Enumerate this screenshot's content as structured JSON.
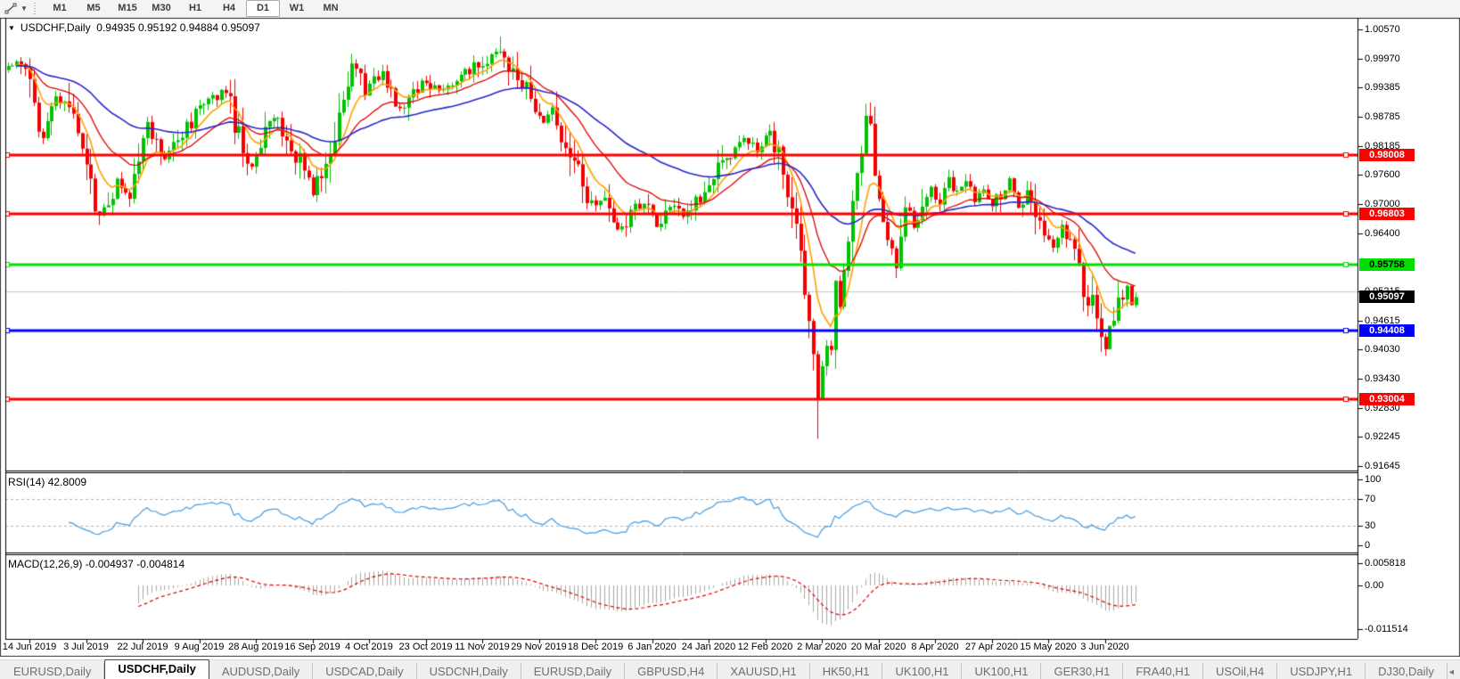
{
  "toolbar": {
    "icon": "trendline-tool-icon",
    "timeframes": [
      "M1",
      "M5",
      "M15",
      "M30",
      "H1",
      "H4",
      "D1",
      "W1",
      "MN"
    ],
    "active_timeframe": "D1"
  },
  "header": {
    "title": "USDCHF,Daily",
    "ohlc_text": "0.94935 0.95192 0.94884 0.95097"
  },
  "rsi_panel": {
    "label": "RSI(14)",
    "value": "42.8009",
    "line_color": "#459be0",
    "level_color": "#b4b4b4",
    "ticks": [
      {
        "t": "100",
        "v": 100
      },
      {
        "t": "70",
        "v": 70
      },
      {
        "t": "30",
        "v": 30
      },
      {
        "t": "0",
        "v": 0
      }
    ],
    "levels": [
      70,
      30
    ]
  },
  "macd_panel": {
    "label": "MACD(12,26,9)",
    "values_text": "-0.004937 -0.004814",
    "histogram_color": "#a8a8a8",
    "signal_color": "#e00000",
    "ticks": [
      {
        "t": "0.005818",
        "v": 0.005818
      },
      {
        "t": "0.00",
        "v": 0
      },
      {
        "t": "-0.011514",
        "v": -0.011514
      }
    ]
  },
  "tabs": {
    "items": [
      "EURUSD,Daily",
      "USDCHF,Daily",
      "AUDUSD,Daily",
      "USDCAD,Daily",
      "USDCNH,Daily",
      "EURUSD,Daily",
      "GBPUSD,H4",
      "XAUUSD,H1",
      "HK50,H1",
      "UK100,H1",
      "UK100,H1",
      "GER30,H1",
      "FRA40,H1",
      "USOil,H4",
      "USDJPY,H1",
      "DJ30,Daily"
    ],
    "active_index": 1,
    "scroll_left": "◄",
    "scroll_right": "►"
  },
  "chart_data": {
    "type": "candlestick",
    "symbol": "USDCHF",
    "timeframe": "Daily",
    "ohlc_display": {
      "open": 0.94935,
      "high": 0.95192,
      "low": 0.94884,
      "close": 0.95097
    },
    "current_price": 0.95097,
    "up_color": "#00c300",
    "down_color": "#f30000",
    "y_axis_ticks": [
      "1.00570",
      "0.99970",
      "0.99385",
      "0.98785",
      "0.98185",
      "0.97600",
      "0.97000",
      "0.96400",
      "0.95215",
      "0.94615",
      "0.94030",
      "0.93430",
      "0.92830",
      "0.92245",
      "0.91645"
    ],
    "x_axis_labels": [
      "14 Jun 2019",
      "3 Jul 2019",
      "22 Jul 2019",
      "9 Aug 2019",
      "28 Aug 2019",
      "16 Sep 2019",
      "4 Oct 2019",
      "23 Oct 2019",
      "11 Nov 2019",
      "29 Nov 2019",
      "18 Dec 2019",
      "6 Jan 2020",
      "24 Jan 2020",
      "12 Feb 2020",
      "2 Mar 2020",
      "20 Mar 2020",
      "8 Apr 2020",
      "27 Apr 2020",
      "15 May 2020",
      "3 Jun 2020"
    ],
    "price_tags": [
      {
        "text": "0.98008",
        "price": 0.98008,
        "bg": "#ff0000",
        "fg": "#ffffff"
      },
      {
        "text": "0.96803",
        "price": 0.96803,
        "bg": "#ff0000",
        "fg": "#ffffff"
      },
      {
        "text": "0.95758",
        "price": 0.95758,
        "bg": "#00e000",
        "fg": "#000000"
      },
      {
        "text": "0.95097",
        "price": 0.95097,
        "bg": "#000000",
        "fg": "#ffffff"
      },
      {
        "text": "0.94408",
        "price": 0.94408,
        "bg": "#0000ff",
        "fg": "#ffffff"
      },
      {
        "text": "0.93004",
        "price": 0.93004,
        "bg": "#ff0000",
        "fg": "#ffffff"
      }
    ],
    "horizontal_levels": [
      {
        "price": 0.98008,
        "color": "#ff0000",
        "width": 3
      },
      {
        "price": 0.96803,
        "color": "#ff0000",
        "width": 3
      },
      {
        "price": 0.95758,
        "color": "#00e000",
        "width": 3
      },
      {
        "price": 0.94408,
        "color": "#0000ff",
        "width": 3
      },
      {
        "price": 0.93004,
        "color": "#ff0000",
        "width": 3
      }
    ],
    "gridline_price": 0.95215,
    "moving_averages": [
      {
        "period": 8,
        "color": "#ffa000",
        "width": 1.6
      },
      {
        "period": 20,
        "color": "#e00000",
        "width": 1.3
      },
      {
        "period": 50,
        "color": "#2727cc",
        "width": 1.6
      }
    ],
    "bars_total": 260,
    "price_path": [
      [
        0,
        0.998
      ],
      [
        2,
        0.9997
      ],
      [
        5,
        0.996
      ],
      [
        8,
        0.9825
      ],
      [
        11,
        0.9915
      ],
      [
        14,
        0.9895
      ],
      [
        18,
        0.9775
      ],
      [
        21,
        0.9663
      ],
      [
        25,
        0.9745
      ],
      [
        28,
        0.971
      ],
      [
        32,
        0.9855
      ],
      [
        36,
        0.979
      ],
      [
        40,
        0.984
      ],
      [
        45,
        0.9905
      ],
      [
        50,
        0.9935
      ],
      [
        53,
        0.9835
      ],
      [
        56,
        0.9775
      ],
      [
        61,
        0.988
      ],
      [
        66,
        0.9805
      ],
      [
        70,
        0.9725
      ],
      [
        75,
        0.985
      ],
      [
        79,
        0.999
      ],
      [
        82,
        0.993
      ],
      [
        86,
        0.9965
      ],
      [
        90,
        0.9895
      ],
      [
        95,
        0.995
      ],
      [
        99,
        0.993
      ],
      [
        103,
        0.995
      ],
      [
        108,
        0.9985
      ],
      [
        113,
        1.002
      ],
      [
        117,
        0.996
      ],
      [
        120,
        0.9915
      ],
      [
        123,
        0.9865
      ],
      [
        125,
        0.989
      ],
      [
        128,
        0.982
      ],
      [
        131,
        0.9768
      ],
      [
        134,
        0.97
      ],
      [
        137,
        0.9715
      ],
      [
        140,
        0.9638
      ],
      [
        143,
        0.968
      ],
      [
        146,
        0.97
      ],
      [
        149,
        0.9655
      ],
      [
        152,
        0.97
      ],
      [
        155,
        0.9672
      ],
      [
        158,
        0.97
      ],
      [
        161,
        0.973
      ],
      [
        165,
        0.98
      ],
      [
        169,
        0.983
      ],
      [
        172,
        0.9812
      ],
      [
        175,
        0.9845
      ],
      [
        178,
        0.977
      ],
      [
        181,
        0.964
      ],
      [
        183,
        0.952
      ],
      [
        185,
        0.94
      ],
      [
        186,
        0.929
      ],
      [
        188,
        0.943
      ],
      [
        189,
        0.938
      ],
      [
        190,
        0.952
      ],
      [
        191,
        0.948
      ],
      [
        193,
        0.961
      ],
      [
        194,
        0.97
      ],
      [
        196,
        0.982
      ],
      [
        197,
        0.988
      ],
      [
        198,
        0.984
      ],
      [
        199,
        0.975
      ],
      [
        201,
        0.968
      ],
      [
        202,
        0.962
      ],
      [
        204,
        0.957
      ],
      [
        205,
        0.964
      ],
      [
        207,
        0.97
      ],
      [
        208,
        0.966
      ],
      [
        210,
        0.969
      ],
      [
        212,
        0.973
      ],
      [
        214,
        0.97
      ],
      [
        216,
        0.9745
      ],
      [
        218,
        0.972
      ],
      [
        220,
        0.975
      ],
      [
        222,
        0.9705
      ],
      [
        224,
        0.9735
      ],
      [
        226,
        0.97
      ],
      [
        228,
        0.9725
      ],
      [
        230,
        0.9745
      ],
      [
        232,
        0.97
      ],
      [
        234,
        0.972
      ],
      [
        236,
        0.966
      ],
      [
        238,
        0.964
      ],
      [
        240,
        0.9615
      ],
      [
        242,
        0.9655
      ],
      [
        244,
        0.9625
      ],
      [
        246,
        0.956
      ],
      [
        248,
        0.951
      ],
      [
        250,
        0.9475
      ],
      [
        252,
        0.9405
      ],
      [
        253,
        0.944
      ],
      [
        255,
        0.9495
      ],
      [
        257,
        0.953
      ],
      [
        258,
        0.94935
      ],
      [
        259,
        0.95097
      ]
    ],
    "key_candles": {
      "79": {
        "high": 1.0007
      },
      "113": {
        "high": 1.0042
      },
      "186": {
        "low": 0.922
      },
      "197": {
        "high": 0.9905
      },
      "252": {
        "low": 0.939
      },
      "258": {
        "close": 0.94935
      },
      "259": {
        "open": 0.94935,
        "high": 0.95192,
        "low": 0.94884,
        "close": 0.95097
      }
    },
    "indicators": {
      "rsi": {
        "period": 14,
        "last": 42.8009,
        "range": [
          0,
          100
        ],
        "levels": [
          70,
          30
        ]
      },
      "macd": {
        "fast": 12,
        "slow": 26,
        "signal": 9,
        "last_macd": -0.004937,
        "last_signal": -0.004814,
        "axis_max": 0.005818,
        "axis_min": -0.011514
      }
    }
  }
}
